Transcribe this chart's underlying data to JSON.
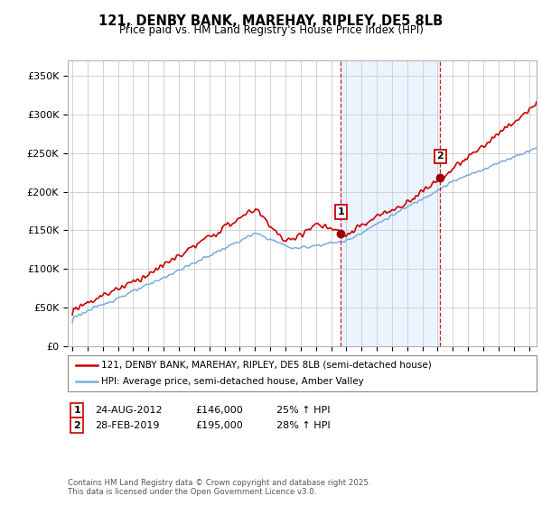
{
  "title": "121, DENBY BANK, MAREHAY, RIPLEY, DE5 8LB",
  "subtitle": "Price paid vs. HM Land Registry's House Price Index (HPI)",
  "ylabel_ticks": [
    "£0",
    "£50K",
    "£100K",
    "£150K",
    "£200K",
    "£250K",
    "£300K",
    "£350K"
  ],
  "ytick_vals": [
    0,
    50000,
    100000,
    150000,
    200000,
    250000,
    300000,
    350000
  ],
  "ylim": [
    0,
    370000
  ],
  "xlim_start": 1994.7,
  "xlim_end": 2025.5,
  "red_line_color": "#cc0000",
  "blue_line_color": "#7aacdc",
  "shade_color": "#ddeeff",
  "vline_color": "#cc0000",
  "dot_color": "#990000",
  "transaction1": {
    "year": 2012.646,
    "price": 146000,
    "label": "1"
  },
  "transaction2": {
    "year": 2019.164,
    "price": 195000,
    "label": "2"
  },
  "legend_line1": "121, DENBY BANK, MAREHAY, RIPLEY, DE5 8LB (semi-detached house)",
  "legend_line2": "HPI: Average price, semi-detached house, Amber Valley",
  "table_rows": [
    [
      "1",
      "24-AUG-2012",
      "£146,000",
      "25% ↑ HPI"
    ],
    [
      "2",
      "28-FEB-2019",
      "£195,000",
      "28% ↑ HPI"
    ]
  ],
  "footnote": "Contains HM Land Registry data © Crown copyright and database right 2025.\nThis data is licensed under the Open Government Licence v3.0.",
  "plot_bg": "#ffffff",
  "grid_color": "#cccccc"
}
